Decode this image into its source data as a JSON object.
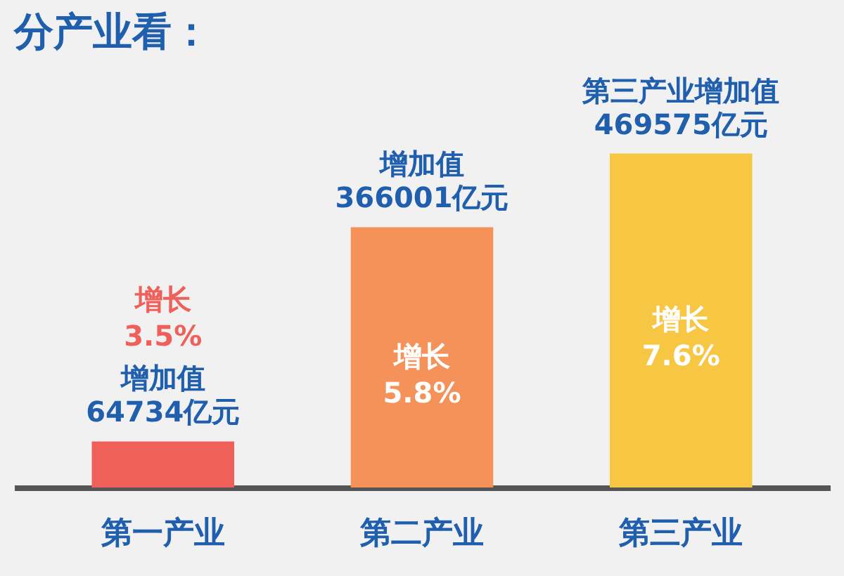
{
  "chart_data": {
    "type": "bar",
    "title": "分产业看：",
    "categories": [
      "第一产业",
      "第二产业",
      "第三产业"
    ],
    "values": [
      64734,
      366001,
      469575
    ],
    "colors": [
      "#f0605a",
      "#f5925a",
      "#f7c744"
    ],
    "value_labels": [
      "增加值\n64734亿元",
      "增加值\n366001亿元",
      "第三产业增加值\n469575亿元"
    ],
    "annotations": [
      "增长\n3.5%",
      "增长\n5.8%",
      "增长\n7.6%"
    ],
    "grid": false
  }
}
